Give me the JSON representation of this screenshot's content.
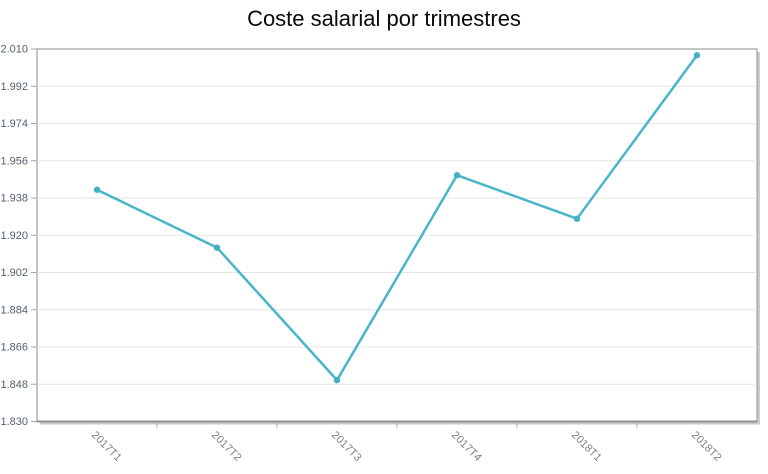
{
  "page": {
    "background_color": "#ffffff"
  },
  "chart_data": {
    "type": "line",
    "title": "Coste salarial por trimestres",
    "categories": [
      "2017T1",
      "2017T2",
      "2017T3",
      "2017T4",
      "2018T1",
      "2018T2"
    ],
    "series": [
      {
        "name": "Coste salarial",
        "values": [
          1942,
          1914,
          1850,
          1949,
          1928,
          2007
        ]
      }
    ],
    "xlabel": "",
    "ylabel": "",
    "ylim": [
      1830,
      2010
    ],
    "y_tick_step": 18,
    "y_tick_labels": [
      "1.830",
      "1.848",
      "1.866",
      "1.884",
      "1.902",
      "1.920",
      "1.938",
      "1.956",
      "1.974",
      "1.992",
      "2.010"
    ],
    "grid": "horizontal",
    "legend_position": "none",
    "x_label_rotation_deg": 45,
    "line_color": "#48b6c8",
    "marker_color": "#42b0c4",
    "axis_color": "#a6a6a6",
    "bottom_axis_color": "#8f8f8f",
    "grid_color": "#e5e5e5",
    "shadow_color": "#cbcbcb",
    "plot_background_color": "#ffffff",
    "y_label_color": "#53616f",
    "x_label_color": "#7f7f7f",
    "title_color": "#0a0a0a"
  }
}
